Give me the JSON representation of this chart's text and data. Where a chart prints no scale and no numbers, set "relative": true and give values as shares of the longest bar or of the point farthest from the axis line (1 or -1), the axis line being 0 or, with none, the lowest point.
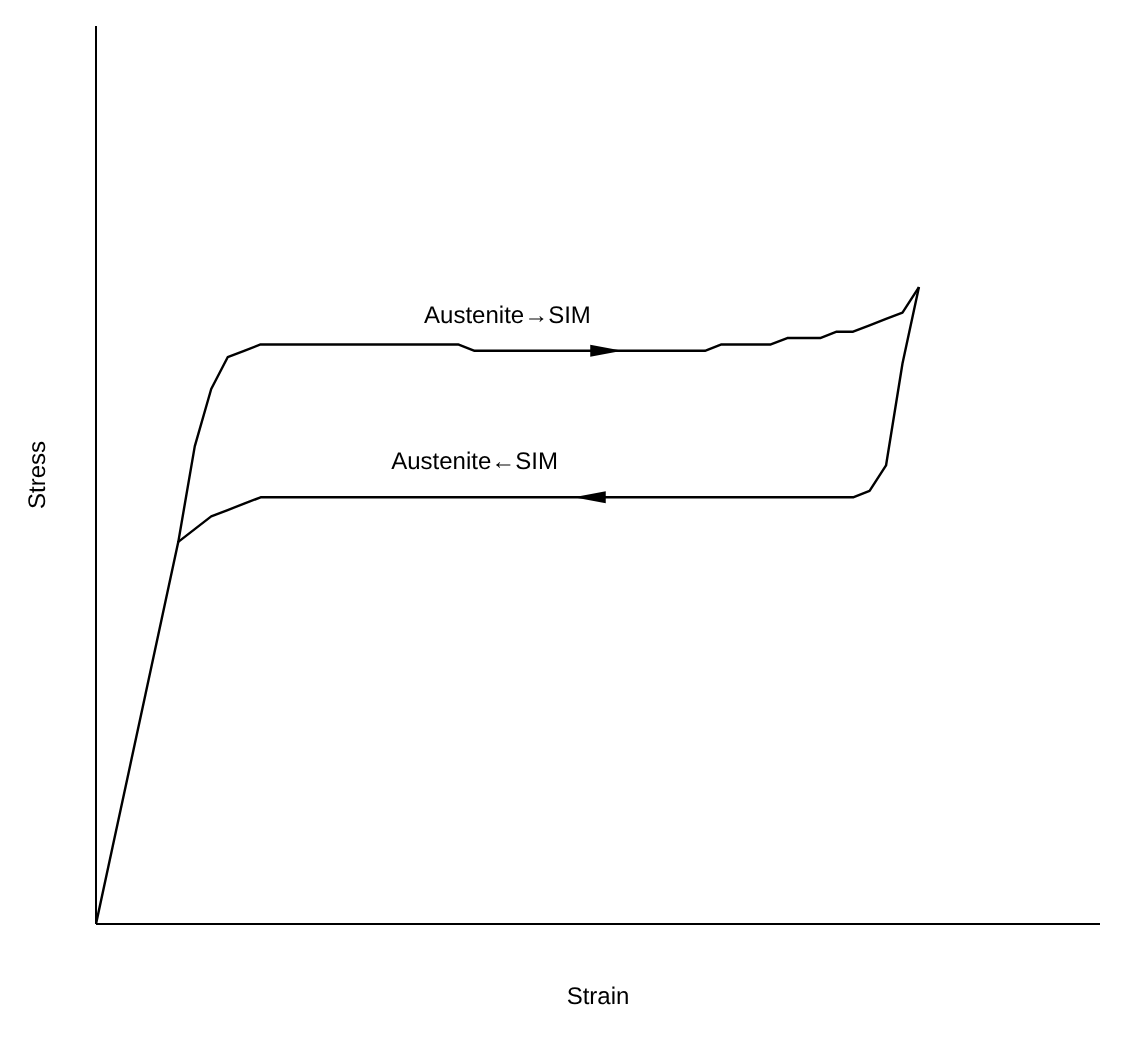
{
  "chart_data": {
    "type": "line",
    "relative": true,
    "xlabel": "Strain",
    "ylabel": "Stress",
    "marker": "none",
    "line_style": "solid",
    "categories": [
      null,
      null,
      null,
      null,
      null,
      null,
      null,
      null,
      null,
      null,
      null,
      null,
      null,
      null,
      null,
      null,
      null,
      null,
      null,
      null,
      null,
      null,
      null,
      null,
      null,
      null,
      null,
      null,
      null,
      null,
      null,
      null,
      null,
      null,
      null,
      null,
      null,
      null,
      null,
      null,
      null,
      null,
      null,
      null,
      null,
      null,
      null,
      null,
      null,
      null,
      null,
      null,
      null,
      null,
      null,
      null,
      null,
      null,
      null,
      null,
      null,
      null
    ],
    "series": [
      {
        "color": "#000000",
        "values": [
          0,
          0.12,
          0.24,
          0.36,
          0.48,
          0.6,
          0.75,
          0.84,
          0.89,
          0.9,
          0.91,
          0.91,
          0.91,
          0.91,
          0.91,
          0.91,
          0.91,
          0.91,
          0.91,
          0.91,
          0.91,
          0.91,
          0.91,
          0.9,
          0.9,
          0.9,
          0.9,
          0.9,
          0.9,
          0.9,
          0.9,
          0.9,
          0.9,
          0.9,
          0.9,
          0.9,
          0.9,
          0.9,
          0.91,
          0.91,
          0.91,
          0.91,
          0.92,
          0.92,
          0.92,
          0.93,
          0.93,
          0.94,
          0.95,
          0.96,
          1,
          null,
          null,
          null,
          null,
          null,
          null,
          null,
          null,
          null,
          null,
          null
        ]
      },
      {
        "color": "#000000",
        "values": [
          null,
          null,
          null,
          null,
          null,
          0.6,
          0.62,
          0.64,
          0.65,
          0.66,
          0.67,
          0.67,
          0.67,
          0.67,
          0.67,
          0.67,
          0.67,
          0.67,
          0.67,
          0.67,
          0.67,
          0.67,
          0.67,
          0.67,
          0.67,
          0.67,
          0.67,
          0.67,
          0.67,
          0.67,
          0.67,
          0.67,
          0.67,
          0.67,
          0.67,
          0.67,
          0.67,
          0.67,
          0.67,
          0.67,
          0.67,
          0.67,
          0.67,
          0.67,
          0.67,
          0.67,
          0.67,
          0.68,
          0.72,
          0.88,
          1,
          null,
          null,
          null,
          null,
          null,
          null,
          null,
          null,
          null,
          null,
          null
        ]
      }
    ],
    "annotations": [
      "Austenite→SIM",
      "Austenite←SIM"
    ]
  }
}
